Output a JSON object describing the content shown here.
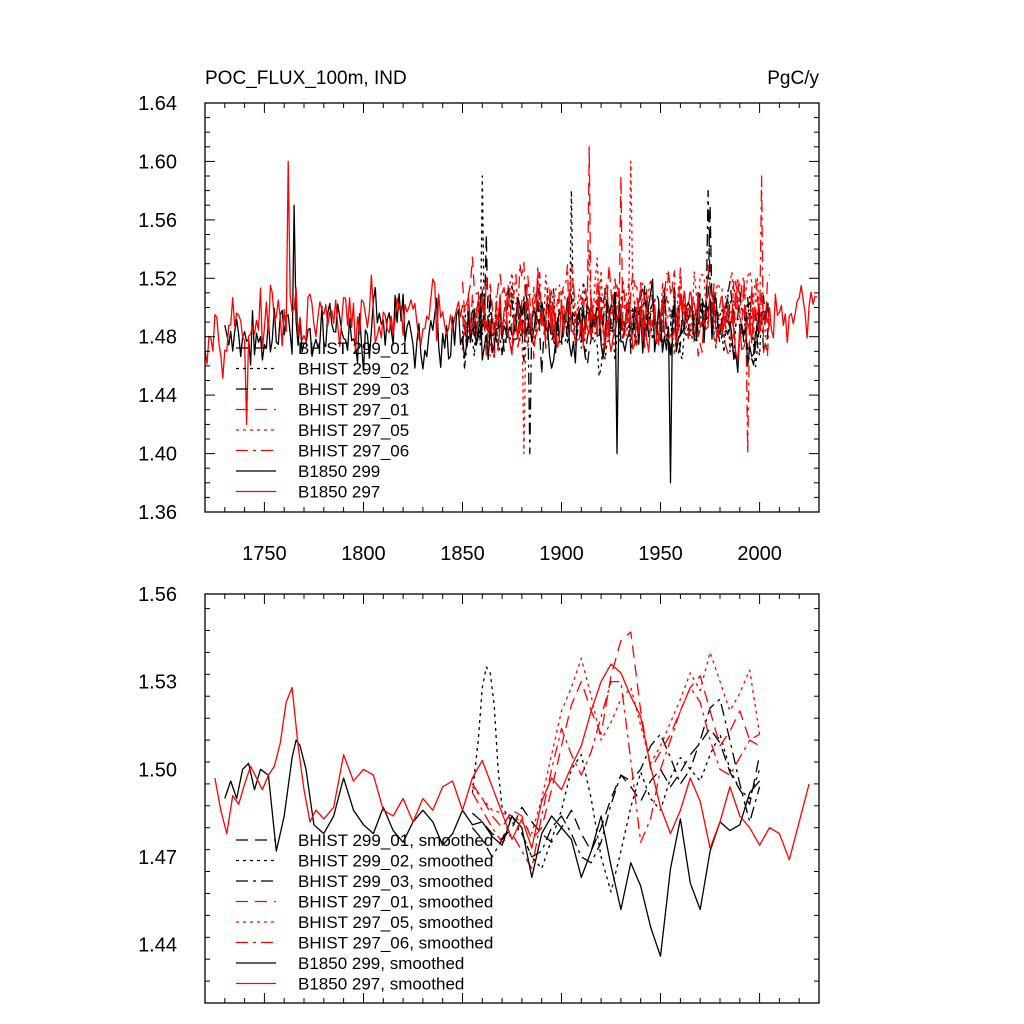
{
  "chart_data": [
    {
      "type": "line",
      "title": "POC_FLUX_100m, IND",
      "units": "PgC/y",
      "xlim": [
        1720,
        2030
      ],
      "ylim": [
        1.36,
        1.64
      ],
      "xticks": [
        1750,
        1800,
        1850,
        1900,
        1950,
        2000
      ],
      "yticks": [
        1.36,
        1.4,
        1.44,
        1.48,
        1.52,
        1.56,
        1.6,
        1.64
      ],
      "ytick_labels": [
        "1.36",
        "1.40",
        "1.44",
        "1.48",
        "1.52",
        "1.56",
        "1.60",
        "1.64"
      ],
      "legend_position": "lower-left",
      "series": [
        {
          "name": "BHIST 299_01",
          "color": "#000000",
          "dash": "dashed",
          "x_range": [
            1850,
            2005
          ],
          "mean": 1.49,
          "amplitude": 0.035,
          "seed": 11,
          "peaks": [
            [
              1862,
              1.55
            ],
            [
              1975,
              1.57
            ]
          ]
        },
        {
          "name": "BHIST 299_02",
          "color": "#000000",
          "dash": "dotted",
          "x_range": [
            1850,
            2005
          ],
          "mean": 1.49,
          "amplitude": 0.035,
          "seed": 23,
          "peaks": [
            [
              1860,
              1.59
            ],
            [
              1905,
              1.58
            ]
          ]
        },
        {
          "name": "BHIST 299_03",
          "color": "#000000",
          "dash": "dashdot",
          "x_range": [
            1850,
            2005
          ],
          "mean": 1.49,
          "amplitude": 0.035,
          "seed": 37,
          "peaks": [
            [
              1974,
              1.58
            ],
            [
              1884,
              1.4
            ]
          ]
        },
        {
          "name": "BHIST 297_01",
          "color": "#ff0000",
          "dash": "dashed",
          "x_range": [
            1850,
            2005
          ],
          "mean": 1.5,
          "amplitude": 0.04,
          "seed": 41,
          "peaks": [
            [
              1914,
              1.61
            ],
            [
              1930,
              1.59
            ]
          ]
        },
        {
          "name": "BHIST 297_05",
          "color": "#ff0000",
          "dash": "dotted",
          "x_range": [
            1850,
            2005
          ],
          "mean": 1.5,
          "amplitude": 0.04,
          "seed": 53,
          "peaks": [
            [
              1935,
              1.6
            ],
            [
              1881,
              1.4
            ]
          ]
        },
        {
          "name": "BHIST 297_06",
          "color": "#ff0000",
          "dash": "dashdot",
          "x_range": [
            1850,
            2005
          ],
          "mean": 1.5,
          "amplitude": 0.04,
          "seed": 67,
          "peaks": [
            [
              2001,
              1.59
            ],
            [
              1994,
              1.4
            ]
          ]
        },
        {
          "name": "B1850 299",
          "color": "#000000",
          "dash": "solid",
          "x_range": [
            1730,
            2000
          ],
          "mean": 1.485,
          "amplitude": 0.035,
          "seed": 79,
          "peaks": [
            [
              1765,
              1.57
            ],
            [
              1955,
              1.38
            ],
            [
              1928,
              1.4
            ]
          ]
        },
        {
          "name": "B1850 297",
          "color": "#ff0000",
          "dash": "solid",
          "x_range": [
            1720,
            2029
          ],
          "mean": 1.49,
          "amplitude": 0.03,
          "seed": 97,
          "peaks": [
            [
              1762,
              1.6
            ],
            [
              1741,
              1.42
            ]
          ]
        }
      ]
    },
    {
      "type": "line",
      "title": "",
      "xlim": [
        1720,
        2030
      ],
      "ylim": [
        1.42,
        1.56
      ],
      "xticks": [
        1750,
        1800,
        1850,
        1900,
        1950,
        2000
      ],
      "yticks": [
        1.44,
        1.47,
        1.5,
        1.53,
        1.56
      ],
      "ytick_labels": [
        "1.44",
        "1.47",
        "1.50",
        "1.53",
        "1.56"
      ],
      "legend_position": "lower-left",
      "series": [
        {
          "name": "BHIST 299_01, smoothed",
          "color": "#000000",
          "dash": "dashed",
          "x": [
            1855,
            1860,
            1865,
            1870,
            1875,
            1880,
            1885,
            1890,
            1895,
            1900,
            1905,
            1910,
            1915,
            1920,
            1925,
            1930,
            1935,
            1940,
            1945,
            1950,
            1955,
            1960,
            1965,
            1970,
            1975,
            1980,
            1985,
            1990,
            1995,
            2000
          ],
          "y": [
            1.485,
            1.482,
            1.478,
            1.476,
            1.48,
            1.487,
            1.482,
            1.478,
            1.475,
            1.48,
            1.486,
            1.478,
            1.472,
            1.48,
            1.49,
            1.498,
            1.494,
            1.489,
            1.496,
            1.5,
            1.494,
            1.499,
            1.505,
            1.509,
            1.514,
            1.509,
            1.499,
            1.493,
            1.488,
            1.505
          ]
        },
        {
          "name": "BHIST 299_02, smoothed",
          "color": "#000000",
          "dash": "dotted",
          "x": [
            1855,
            1858,
            1860,
            1862,
            1864,
            1866,
            1868,
            1870,
            1875,
            1880,
            1885,
            1890,
            1895,
            1900,
            1905,
            1910,
            1915,
            1920,
            1925,
            1930,
            1935,
            1940,
            1945,
            1950,
            1955,
            1960,
            1965,
            1970,
            1975,
            1980,
            1985,
            1990,
            1995,
            2000
          ],
          "y": [
            1.492,
            1.51,
            1.528,
            1.535,
            1.533,
            1.522,
            1.5,
            1.487,
            1.482,
            1.478,
            1.47,
            1.466,
            1.476,
            1.486,
            1.5,
            1.505,
            1.49,
            1.47,
            1.458,
            1.472,
            1.487,
            1.499,
            1.49,
            1.486,
            1.497,
            1.504,
            1.5,
            1.496,
            1.505,
            1.512,
            1.5,
            1.493,
            1.49,
            1.5
          ]
        },
        {
          "name": "BHIST 299_03, smoothed",
          "color": "#000000",
          "dash": "dashdot",
          "x": [
            1855,
            1860,
            1865,
            1870,
            1875,
            1880,
            1885,
            1890,
            1895,
            1900,
            1905,
            1910,
            1915,
            1920,
            1925,
            1930,
            1935,
            1940,
            1945,
            1950,
            1955,
            1960,
            1965,
            1970,
            1975,
            1980,
            1985,
            1990,
            1995,
            2000
          ],
          "y": [
            1.48,
            1.476,
            1.47,
            1.476,
            1.484,
            1.478,
            1.47,
            1.472,
            1.48,
            1.484,
            1.478,
            1.47,
            1.468,
            1.475,
            1.488,
            1.498,
            1.496,
            1.5,
            1.508,
            1.512,
            1.504,
            1.495,
            1.5,
            1.51,
            1.521,
            1.524,
            1.51,
            1.495,
            1.482,
            1.494
          ]
        },
        {
          "name": "BHIST 297_01, smoothed",
          "color": "#ff0000",
          "dash": "dashed",
          "x": [
            1855,
            1860,
            1865,
            1870,
            1875,
            1880,
            1885,
            1890,
            1895,
            1900,
            1905,
            1910,
            1915,
            1920,
            1925,
            1930,
            1935,
            1940,
            1945,
            1950,
            1955,
            1960,
            1965,
            1970,
            1975,
            1980,
            1985,
            1990,
            1995,
            2000
          ],
          "y": [
            1.495,
            1.49,
            1.484,
            1.48,
            1.486,
            1.484,
            1.476,
            1.48,
            1.493,
            1.508,
            1.522,
            1.53,
            1.52,
            1.512,
            1.532,
            1.544,
            1.547,
            1.52,
            1.5,
            1.506,
            1.512,
            1.52,
            1.528,
            1.532,
            1.52,
            1.508,
            1.513,
            1.52,
            1.51,
            1.512
          ]
        },
        {
          "name": "BHIST 297_05, smoothed",
          "color": "#ff0000",
          "dash": "dotted",
          "x": [
            1855,
            1860,
            1865,
            1870,
            1875,
            1880,
            1885,
            1890,
            1895,
            1900,
            1905,
            1910,
            1915,
            1920,
            1925,
            1930,
            1935,
            1940,
            1945,
            1950,
            1955,
            1960,
            1965,
            1970,
            1975,
            1980,
            1985,
            1990,
            1995,
            2000
          ],
          "y": [
            1.494,
            1.49,
            1.486,
            1.485,
            1.484,
            1.482,
            1.478,
            1.49,
            1.505,
            1.52,
            1.528,
            1.538,
            1.525,
            1.51,
            1.516,
            1.524,
            1.528,
            1.515,
            1.502,
            1.508,
            1.516,
            1.524,
            1.533,
            1.527,
            1.54,
            1.53,
            1.52,
            1.526,
            1.534,
            1.512
          ]
        },
        {
          "name": "BHIST 297_06, smoothed",
          "color": "#ff0000",
          "dash": "dashdot",
          "x": [
            1855,
            1860,
            1865,
            1870,
            1875,
            1880,
            1885,
            1890,
            1895,
            1900,
            1905,
            1910,
            1915,
            1920,
            1925,
            1930,
            1935,
            1940,
            1945,
            1950,
            1955,
            1960,
            1965,
            1970,
            1975,
            1980,
            1985,
            1990,
            1995,
            2000
          ],
          "y": [
            1.492,
            1.486,
            1.48,
            1.475,
            1.478,
            1.472,
            1.466,
            1.484,
            1.5,
            1.514,
            1.505,
            1.498,
            1.506,
            1.518,
            1.53,
            1.53,
            1.503,
            1.475,
            1.483,
            1.5,
            1.51,
            1.52,
            1.528,
            1.523,
            1.51,
            1.5,
            1.498,
            1.504,
            1.51,
            1.508
          ]
        },
        {
          "name": "B1850 299, smoothed",
          "color": "#000000",
          "dash": "solid",
          "x": [
            1730,
            1733,
            1736,
            1739,
            1742,
            1745,
            1748,
            1752,
            1756,
            1760,
            1764,
            1766,
            1768,
            1771,
            1775,
            1780,
            1785,
            1790,
            1795,
            1800,
            1805,
            1810,
            1815,
            1820,
            1825,
            1830,
            1835,
            1840,
            1845,
            1850,
            1855,
            1860,
            1865,
            1870,
            1875,
            1880,
            1885,
            1890,
            1895,
            1900,
            1905,
            1910,
            1915,
            1920,
            1925,
            1930,
            1935,
            1940,
            1945,
            1950,
            1955,
            1960,
            1965,
            1970,
            1975,
            1980,
            1985,
            1990,
            1995,
            2000
          ],
          "y": [
            1.49,
            1.496,
            1.49,
            1.5,
            1.502,
            1.493,
            1.5,
            1.498,
            1.472,
            1.484,
            1.504,
            1.51,
            1.508,
            1.5,
            1.481,
            1.478,
            1.484,
            1.497,
            1.486,
            1.481,
            1.478,
            1.487,
            1.479,
            1.475,
            1.482,
            1.486,
            1.482,
            1.474,
            1.478,
            1.486,
            1.481,
            1.482,
            1.477,
            1.474,
            1.484,
            1.48,
            1.463,
            1.478,
            1.484,
            1.48,
            1.476,
            1.463,
            1.472,
            1.484,
            1.467,
            1.452,
            1.468,
            1.46,
            1.446,
            1.436,
            1.466,
            1.483,
            1.461,
            1.452,
            1.472,
            1.482,
            1.479,
            1.481,
            1.492,
            1.496
          ]
        },
        {
          "name": "B1850 297, smoothed",
          "color": "#ff0000",
          "dash": "solid",
          "x": [
            1725,
            1728,
            1731,
            1734,
            1737,
            1740,
            1743,
            1746,
            1749,
            1752,
            1755,
            1758,
            1761,
            1764,
            1767,
            1770,
            1773,
            1776,
            1780,
            1785,
            1790,
            1795,
            1800,
            1805,
            1810,
            1815,
            1820,
            1825,
            1830,
            1835,
            1840,
            1845,
            1850,
            1855,
            1860,
            1865,
            1870,
            1875,
            1880,
            1885,
            1890,
            1895,
            1900,
            1905,
            1910,
            1915,
            1920,
            1925,
            1930,
            1935,
            1940,
            1945,
            1950,
            1955,
            1960,
            1965,
            1970,
            1975,
            1980,
            1985,
            1990,
            1995,
            2000,
            2005,
            2010,
            2015,
            2020,
            2025
          ],
          "y": [
            1.497,
            1.486,
            1.478,
            1.491,
            1.488,
            1.495,
            1.501,
            1.497,
            1.493,
            1.498,
            1.501,
            1.509,
            1.523,
            1.528,
            1.508,
            1.493,
            1.482,
            1.486,
            1.483,
            1.487,
            1.505,
            1.496,
            1.5,
            1.498,
            1.486,
            1.484,
            1.49,
            1.482,
            1.49,
            1.486,
            1.494,
            1.496,
            1.486,
            1.497,
            1.503,
            1.494,
            1.485,
            1.476,
            1.483,
            1.473,
            1.489,
            1.497,
            1.493,
            1.501,
            1.508,
            1.52,
            1.53,
            1.536,
            1.533,
            1.525,
            1.518,
            1.501,
            1.487,
            1.478,
            1.486,
            1.497,
            1.489,
            1.473,
            1.482,
            1.494,
            1.484,
            1.48,
            1.474,
            1.48,
            1.478,
            1.469,
            1.482,
            1.495
          ]
        }
      ]
    }
  ]
}
